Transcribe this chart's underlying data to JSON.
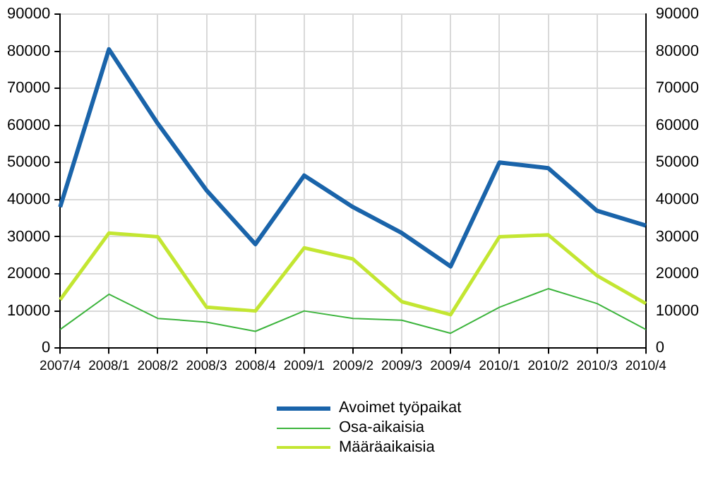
{
  "chart_data": {
    "type": "line",
    "categories": [
      "2007/4",
      "2008/1",
      "2008/2",
      "2008/3",
      "2008/4",
      "2009/1",
      "2009/2",
      "2009/3",
      "2009/4",
      "2010/1",
      "2010/2",
      "2010/3",
      "2010/4"
    ],
    "series": [
      {
        "name": "Avoimet työpaikat",
        "color": "#1a64aa",
        "values": [
          38000,
          80500,
          60500,
          42500,
          28000,
          46500,
          38000,
          31000,
          22000,
          50000,
          48500,
          37000,
          33000
        ]
      },
      {
        "name": "Osa-aikaisia",
        "color": "#3cb43c",
        "values": [
          5000,
          14500,
          8000,
          7000,
          4500,
          10000,
          8000,
          7500,
          4000,
          11000,
          16000,
          12000,
          5000
        ]
      },
      {
        "name": "Määräaikaisia",
        "color": "#c3e632",
        "values": [
          13000,
          31000,
          30000,
          11000,
          10000,
          27000,
          24000,
          12500,
          9000,
          30000,
          30500,
          19500,
          12000
        ]
      }
    ],
    "ylim": [
      0,
      90000
    ],
    "yticks": [
      0,
      10000,
      20000,
      30000,
      40000,
      50000,
      60000,
      70000,
      80000,
      90000
    ],
    "y2lim": [
      0,
      90000
    ],
    "y2ticks": [
      0,
      10000,
      20000,
      30000,
      40000,
      50000,
      60000,
      70000,
      80000,
      90000
    ],
    "grid": true,
    "legend": "bottom",
    "marker": "none",
    "line_style": "solid"
  }
}
